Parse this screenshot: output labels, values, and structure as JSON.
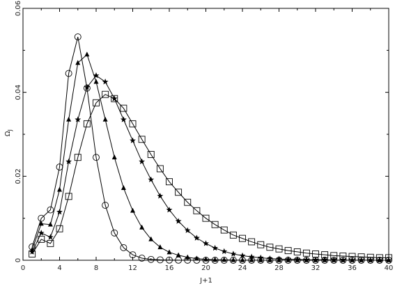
{
  "chart_data": {
    "type": "line",
    "xlabel": "J+1",
    "ylabel": "Ω",
    "ylabel_sub": "J",
    "xlim": [
      0,
      40
    ],
    "ylim": [
      0,
      0.06
    ],
    "x_ticks": [
      0,
      4,
      8,
      12,
      16,
      20,
      24,
      28,
      32,
      36,
      40
    ],
    "x_tick_labels": [
      "0",
      "4",
      "8",
      "12",
      "16",
      "20",
      "24",
      "28",
      "32",
      "36",
      "40"
    ],
    "y_ticks": [
      0,
      0.02,
      0.04,
      0.06
    ],
    "y_tick_labels": [
      "0",
      "0.02",
      "0.04",
      "0.06"
    ],
    "grid": false,
    "series": [
      {
        "marker": "circle",
        "x": [
          1,
          2,
          3,
          4,
          5,
          6,
          7,
          8,
          9,
          10,
          11,
          12,
          13,
          14,
          15,
          16,
          17,
          18,
          19,
          20,
          21,
          22,
          23,
          24,
          25,
          26,
          27,
          28,
          29,
          30,
          31,
          32,
          33,
          34,
          35,
          36,
          37,
          38,
          39,
          40
        ],
        "y": [
          0.0032,
          0.01,
          0.012,
          0.0222,
          0.0445,
          0.0532,
          0.041,
          0.0245,
          0.0131,
          0.0065,
          0.003,
          0.0013,
          0.0005,
          0.0002,
          0.0001,
          5e-05,
          3e-05,
          2e-05,
          1e-05,
          1e-05,
          0,
          0,
          0,
          0,
          0,
          0,
          0,
          0,
          0,
          0,
          0,
          0,
          0,
          0,
          0,
          0,
          0,
          0,
          0,
          0
        ]
      },
      {
        "marker": "triangle",
        "x": [
          1,
          2,
          3,
          4,
          5,
          6,
          7,
          8,
          9,
          10,
          11,
          12,
          13,
          14,
          15,
          16,
          17,
          18,
          19,
          20,
          21,
          22,
          23,
          24,
          25,
          26,
          27,
          28,
          29,
          30,
          31,
          32,
          33,
          34,
          35,
          36,
          37,
          38,
          39,
          40
        ],
        "y": [
          0.0025,
          0.0087,
          0.0085,
          0.0168,
          0.0335,
          0.047,
          0.049,
          0.0425,
          0.0335,
          0.0245,
          0.0172,
          0.0118,
          0.0078,
          0.005,
          0.0031,
          0.0019,
          0.0012,
          0.0007,
          0.0004,
          0.0002,
          0.0001,
          0.0001,
          5e-05,
          3e-05,
          2e-05,
          1e-05,
          0,
          0,
          0,
          0,
          0,
          0,
          0,
          0,
          0,
          0,
          0,
          0,
          0,
          0
        ]
      },
      {
        "marker": "star",
        "x": [
          1,
          2,
          3,
          4,
          5,
          6,
          7,
          8,
          9,
          10,
          11,
          12,
          13,
          14,
          15,
          16,
          17,
          18,
          19,
          20,
          21,
          22,
          23,
          24,
          25,
          26,
          27,
          28,
          29,
          30,
          31,
          32,
          33,
          34,
          35,
          36,
          37,
          38,
          39,
          40
        ],
        "y": [
          0.002,
          0.0065,
          0.0055,
          0.0115,
          0.0235,
          0.0335,
          0.0412,
          0.044,
          0.0425,
          0.0385,
          0.0335,
          0.0285,
          0.0235,
          0.0192,
          0.0153,
          0.012,
          0.0093,
          0.0071,
          0.0053,
          0.004,
          0.0029,
          0.0021,
          0.0015,
          0.0011,
          0.0008,
          0.0006,
          0.0004,
          0.0003,
          0.0002,
          0.0002,
          0.0001,
          0.0001,
          0.0001,
          5e-05,
          4e-05,
          3e-05,
          2e-05,
          2e-05,
          1e-05,
          1e-05
        ]
      },
      {
        "marker": "square",
        "x": [
          1,
          2,
          3,
          4,
          5,
          6,
          7,
          8,
          9,
          10,
          11,
          12,
          13,
          14,
          15,
          16,
          17,
          18,
          19,
          20,
          21,
          22,
          23,
          24,
          25,
          26,
          27,
          28,
          29,
          30,
          31,
          32,
          33,
          34,
          35,
          36,
          37,
          38,
          39,
          40
        ],
        "y": [
          0.0015,
          0.005,
          0.004,
          0.0075,
          0.0152,
          0.0245,
          0.0325,
          0.0375,
          0.0395,
          0.0385,
          0.0362,
          0.0325,
          0.0288,
          0.0252,
          0.0218,
          0.0187,
          0.0162,
          0.0138,
          0.0118,
          0.01,
          0.0085,
          0.0072,
          0.006,
          0.0052,
          0.0044,
          0.0037,
          0.0031,
          0.0027,
          0.0023,
          0.002,
          0.0017,
          0.0015,
          0.0013,
          0.0011,
          0.001,
          0.0009,
          0.0008,
          0.0007,
          0.0006,
          0.0006
        ]
      }
    ]
  }
}
